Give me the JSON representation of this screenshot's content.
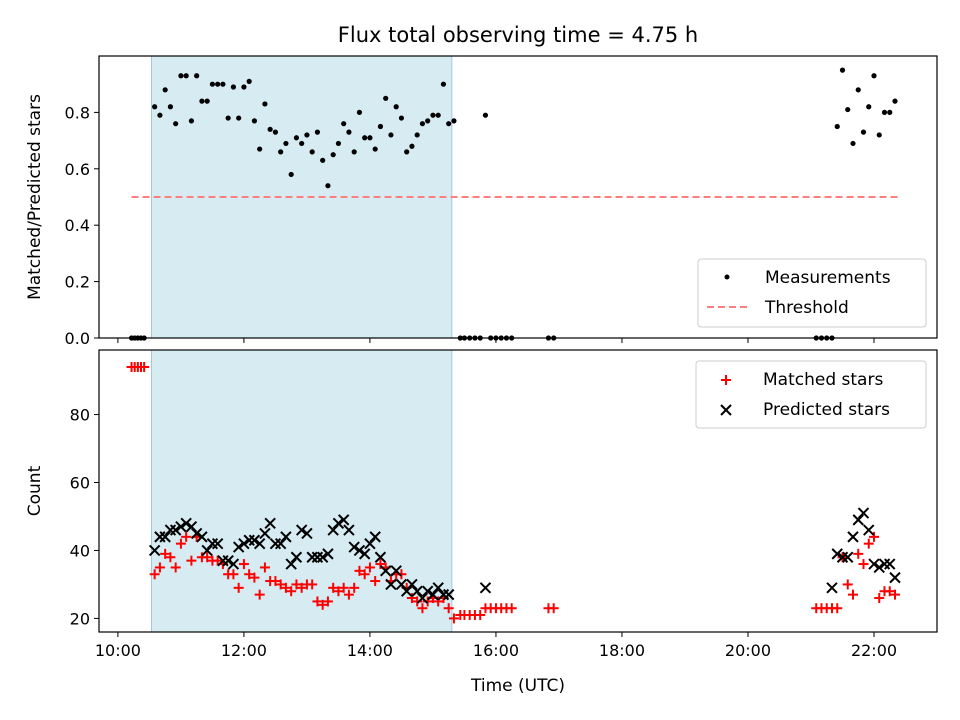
{
  "chart_data": [
    {
      "type": "scatter",
      "title": "Flux total observing time = 4.75 h",
      "xlabel": "",
      "ylabel": "Matched/Predicted stars",
      "xlim": [
        "09:42",
        "23:00"
      ],
      "ylim": [
        0.0,
        1.0
      ],
      "yticks": [
        "0.0",
        "0.2",
        "0.4",
        "0.6",
        "0.8"
      ],
      "ytick_values": [
        0.0,
        0.2,
        0.4,
        0.6,
        0.8
      ],
      "shaded_interval": [
        "10:32",
        "15:18"
      ],
      "grid": false,
      "legend_position": "lower-right",
      "series": [
        {
          "name": "Measurements",
          "marker": "dot",
          "color": "#000000",
          "x": [
            "10:13",
            "10:16",
            "10:19",
            "10:22",
            "10:25",
            "10:35",
            "10:40",
            "10:45",
            "10:50",
            "10:55",
            "11:00",
            "11:05",
            "11:10",
            "11:15",
            "11:20",
            "11:25",
            "11:30",
            "11:35",
            "11:40",
            "11:45",
            "11:50",
            "11:55",
            "12:00",
            "12:05",
            "12:10",
            "12:15",
            "12:20",
            "12:25",
            "12:30",
            "12:35",
            "12:40",
            "12:45",
            "12:50",
            "12:55",
            "13:00",
            "13:05",
            "13:10",
            "13:15",
            "13:20",
            "13:25",
            "13:30",
            "13:35",
            "13:40",
            "13:45",
            "13:50",
            "13:55",
            "14:00",
            "14:05",
            "14:10",
            "14:15",
            "14:20",
            "14:25",
            "14:30",
            "14:35",
            "14:40",
            "14:45",
            "14:50",
            "14:55",
            "15:00",
            "15:05",
            "15:10",
            "15:15",
            "15:20",
            "15:26",
            "15:30",
            "15:35",
            "15:40",
            "15:45",
            "15:50",
            "15:55",
            "16:00",
            "16:05",
            "16:10",
            "16:15",
            "16:50",
            "16:55",
            "21:05",
            "21:10",
            "21:15",
            "21:20",
            "21:25",
            "21:30",
            "21:35",
            "21:40",
            "21:45",
            "21:50",
            "21:55",
            "22:00",
            "22:05",
            "22:10",
            "22:15",
            "22:20"
          ],
          "y": [
            0,
            0,
            0,
            0,
            0,
            0.82,
            0.79,
            0.88,
            0.82,
            0.76,
            0.93,
            0.93,
            0.77,
            0.93,
            0.84,
            0.84,
            0.9,
            0.9,
            0.9,
            0.78,
            0.89,
            0.78,
            0.89,
            0.91,
            0.77,
            0.67,
            0.83,
            0.74,
            0.73,
            0.66,
            0.69,
            0.58,
            0.71,
            0.69,
            0.72,
            0.66,
            0.73,
            0.63,
            0.54,
            0.65,
            0.69,
            0.76,
            0.73,
            0.66,
            0.8,
            0.71,
            0.71,
            0.67,
            0.75,
            0.85,
            0.72,
            0.82,
            0.78,
            0.66,
            0.68,
            0.72,
            0.76,
            0.77,
            0.79,
            0.79,
            0.9,
            0.76,
            0.77,
            0,
            0,
            0,
            0,
            0,
            0.79,
            0,
            0,
            0,
            0,
            0,
            0,
            0,
            0,
            0,
            0,
            0,
            0.75,
            0.95,
            0.81,
            0.69,
            0.88,
            0.73,
            0.82,
            0.93,
            0.72,
            0.8,
            0.8,
            0.84
          ]
        },
        {
          "name": "Threshold",
          "style": "dashed",
          "color": "#ff7f7f",
          "x": [
            "10:13",
            "22:25"
          ],
          "y": [
            0.5,
            0.5
          ]
        }
      ]
    },
    {
      "type": "scatter",
      "title": "",
      "xlabel": "Time (UTC)",
      "ylabel": "Count",
      "xlim": [
        "09:42",
        "23:00"
      ],
      "ylim": [
        16,
        99
      ],
      "yticks": [
        "20",
        "40",
        "60",
        "80"
      ],
      "ytick_values": [
        20,
        40,
        60,
        80
      ],
      "xticks": [
        "10:00",
        "12:00",
        "14:00",
        "16:00",
        "18:00",
        "20:00",
        "22:00"
      ],
      "shaded_interval": [
        "10:32",
        "15:18"
      ],
      "grid": false,
      "legend_position": "top-right",
      "series": [
        {
          "name": "Matched stars",
          "marker": "plus",
          "color": "#ff0000",
          "x": [
            "10:13",
            "10:16",
            "10:19",
            "10:22",
            "10:25",
            "10:35",
            "10:40",
            "10:45",
            "10:50",
            "10:55",
            "11:00",
            "11:05",
            "11:10",
            "11:15",
            "11:20",
            "11:25",
            "11:30",
            "11:35",
            "11:40",
            "11:45",
            "11:50",
            "11:55",
            "12:00",
            "12:05",
            "12:10",
            "12:15",
            "12:20",
            "12:25",
            "12:30",
            "12:35",
            "12:40",
            "12:45",
            "12:50",
            "12:55",
            "13:00",
            "13:05",
            "13:10",
            "13:15",
            "13:20",
            "13:25",
            "13:30",
            "13:35",
            "13:40",
            "13:45",
            "13:50",
            "13:55",
            "14:00",
            "14:05",
            "14:10",
            "14:15",
            "14:20",
            "14:25",
            "14:30",
            "14:35",
            "14:40",
            "14:45",
            "14:50",
            "14:55",
            "15:00",
            "15:05",
            "15:10",
            "15:15",
            "15:20",
            "15:26",
            "15:30",
            "15:35",
            "15:40",
            "15:45",
            "15:50",
            "15:55",
            "16:00",
            "16:05",
            "16:10",
            "16:15",
            "16:50",
            "16:55",
            "21:05",
            "21:10",
            "21:15",
            "21:20",
            "21:25",
            "21:30",
            "21:35",
            "21:40",
            "21:45",
            "21:50",
            "21:55",
            "22:00",
            "22:05",
            "22:10",
            "22:15",
            "22:20"
          ],
          "y": [
            94,
            94,
            94,
            94,
            94,
            33,
            35,
            39,
            38,
            35,
            42,
            44,
            37,
            44,
            38,
            38,
            37,
            37,
            36,
            33,
            33,
            29,
            36,
            33,
            32,
            27,
            35,
            31,
            31,
            30,
            29,
            28,
            30,
            29,
            30,
            30,
            25,
            24,
            25,
            29,
            28,
            29,
            27,
            29,
            34,
            33,
            35,
            31,
            36,
            35,
            31,
            33,
            33,
            29,
            26,
            25,
            23,
            25,
            26,
            25,
            26,
            23,
            20,
            21,
            21,
            21,
            21,
            21,
            23,
            23,
            23,
            23,
            23,
            23,
            23,
            23,
            23,
            23,
            23,
            23,
            23,
            38,
            30,
            27,
            39,
            36,
            42,
            44,
            26,
            28,
            28,
            27
          ]
        },
        {
          "name": "Predicted stars",
          "marker": "x",
          "color": "#000000",
          "x": [
            "10:35",
            "10:40",
            "10:45",
            "10:50",
            "10:55",
            "11:00",
            "11:05",
            "11:10",
            "11:15",
            "11:20",
            "11:25",
            "11:30",
            "11:35",
            "11:40",
            "11:45",
            "11:50",
            "11:55",
            "12:00",
            "12:05",
            "12:10",
            "12:15",
            "12:20",
            "12:25",
            "12:30",
            "12:35",
            "12:40",
            "12:45",
            "12:50",
            "12:55",
            "13:00",
            "13:05",
            "13:10",
            "13:15",
            "13:20",
            "13:25",
            "13:30",
            "13:35",
            "13:40",
            "13:45",
            "13:50",
            "13:55",
            "14:00",
            "14:05",
            "14:10",
            "14:15",
            "14:20",
            "14:25",
            "14:30",
            "14:35",
            "14:40",
            "14:45",
            "14:50",
            "14:55",
            "15:00",
            "15:05",
            "15:10",
            "15:15",
            "15:50",
            "21:20",
            "21:25",
            "21:30",
            "21:35",
            "21:40",
            "21:45",
            "21:50",
            "21:55",
            "22:00",
            "22:05",
            "22:10",
            "22:15",
            "22:20"
          ],
          "y": [
            40,
            44,
            44,
            46,
            46,
            47,
            48,
            47,
            45,
            44,
            40,
            42,
            42,
            37,
            37,
            36,
            41,
            42,
            43,
            43,
            42,
            45,
            48,
            42,
            42,
            44,
            36,
            38,
            46,
            45,
            38,
            38,
            38,
            39,
            46,
            48,
            49,
            46,
            41,
            40,
            39,
            42,
            44,
            38,
            34,
            30,
            34,
            30,
            28,
            30,
            28,
            26,
            28,
            27,
            29,
            27,
            27,
            29,
            29,
            39,
            38,
            38,
            44,
            49,
            51,
            46,
            36,
            35,
            36,
            36,
            32
          ]
        }
      ]
    }
  ]
}
